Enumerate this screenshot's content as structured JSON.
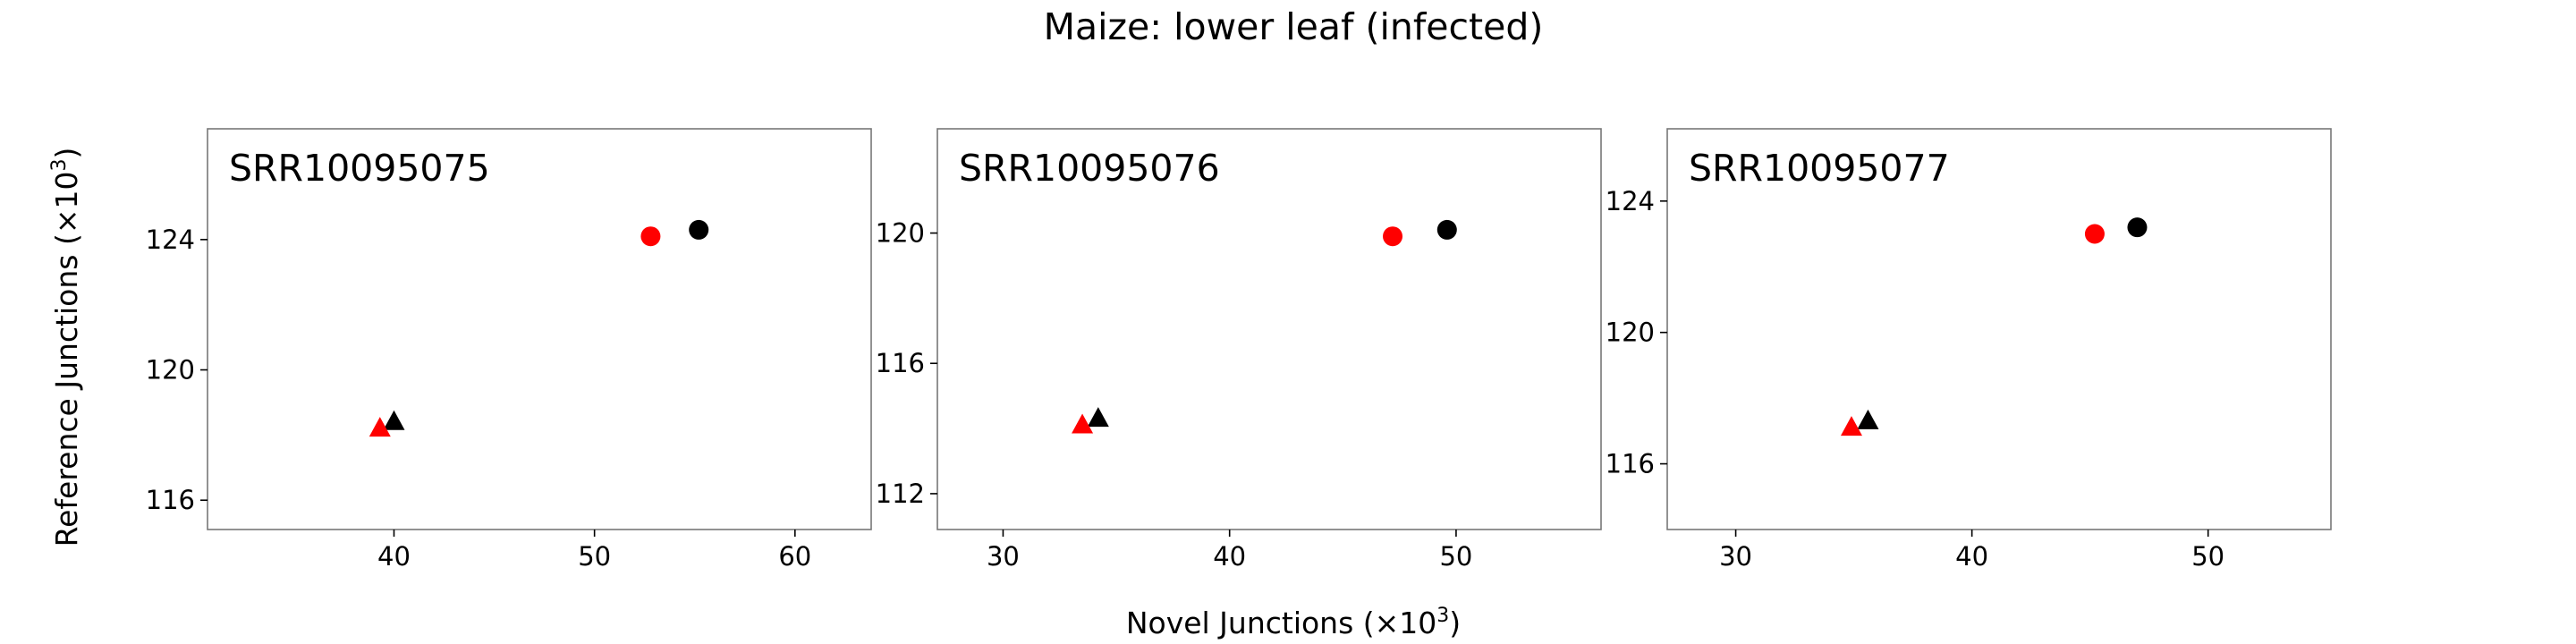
{
  "figure": {
    "title": "Maize: lower leaf (infected)",
    "xlabel": "Novel Junctions (×10",
    "ylabel": "Reference Junctions (×10",
    "exponent": "3",
    "close_paren": ")"
  },
  "chart_data": [
    {
      "type": "scatter",
      "title": "SRR10095075",
      "xlim": [
        30.7,
        63.8
      ],
      "ylim": [
        115.1,
        127.4
      ],
      "xticks": [
        40,
        50,
        60
      ],
      "yticks": [
        116,
        120,
        124
      ],
      "grid": false,
      "series": [
        {
          "marker": "circle",
          "color": "#000000",
          "points": [
            {
              "x": 55.2,
              "y": 124.3
            }
          ]
        },
        {
          "marker": "circle",
          "color": "#ff0000",
          "points": [
            {
              "x": 52.8,
              "y": 124.1
            }
          ]
        },
        {
          "marker": "triangle",
          "color": "#000000",
          "points": [
            {
              "x": 40.0,
              "y": 118.4
            }
          ]
        },
        {
          "marker": "triangle",
          "color": "#ff0000",
          "points": [
            {
              "x": 39.3,
              "y": 118.2
            }
          ]
        }
      ]
    },
    {
      "type": "scatter",
      "title": "SRR10095076",
      "xlim": [
        27.1,
        56.4
      ],
      "ylim": [
        110.9,
        123.2
      ],
      "xticks": [
        30,
        40,
        50
      ],
      "yticks": [
        112,
        116,
        120
      ],
      "grid": false,
      "series": [
        {
          "marker": "circle",
          "color": "#000000",
          "points": [
            {
              "x": 49.6,
              "y": 120.1
            }
          ]
        },
        {
          "marker": "circle",
          "color": "#ff0000",
          "points": [
            {
              "x": 47.2,
              "y": 119.9
            }
          ]
        },
        {
          "marker": "triangle",
          "color": "#000000",
          "points": [
            {
              "x": 34.2,
              "y": 114.3
            }
          ]
        },
        {
          "marker": "triangle",
          "color": "#ff0000",
          "points": [
            {
              "x": 33.5,
              "y": 114.1
            }
          ]
        }
      ]
    },
    {
      "type": "scatter",
      "title": "SRR10095077",
      "xlim": [
        27.1,
        55.2
      ],
      "ylim": [
        114.0,
        126.2
      ],
      "xticks": [
        30,
        40,
        50
      ],
      "yticks": [
        116,
        120,
        124
      ],
      "grid": false,
      "series": [
        {
          "marker": "circle",
          "color": "#000000",
          "points": [
            {
              "x": 47.0,
              "y": 123.2
            }
          ]
        },
        {
          "marker": "circle",
          "color": "#ff0000",
          "points": [
            {
              "x": 45.2,
              "y": 123.0
            }
          ]
        },
        {
          "marker": "triangle",
          "color": "#000000",
          "points": [
            {
              "x": 35.6,
              "y": 117.3
            }
          ]
        },
        {
          "marker": "triangle",
          "color": "#ff0000",
          "points": [
            {
              "x": 34.9,
              "y": 117.1
            }
          ]
        }
      ]
    }
  ]
}
